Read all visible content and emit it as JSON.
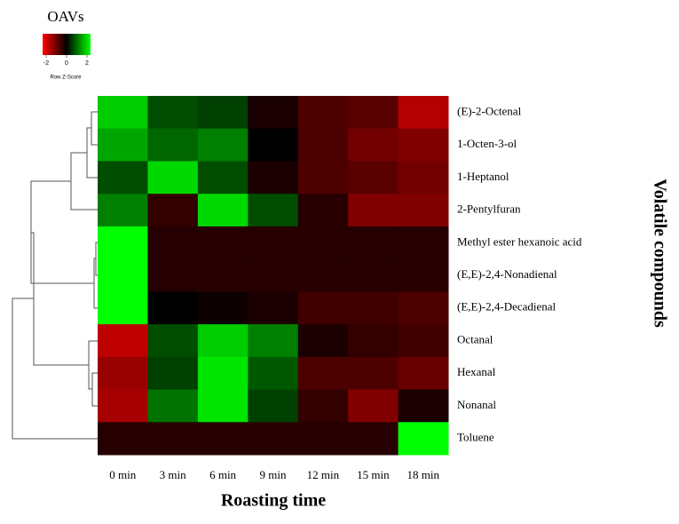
{
  "chart_data": {
    "type": "heatmap",
    "xlabel": "Roasting time",
    "ylabel": "Volatile compounds",
    "x": [
      "0 min",
      "3 min",
      "6 min",
      "9 min",
      "12 min",
      "15 min",
      "18 min"
    ],
    "y": [
      "(E)-2-Octenal",
      "1-Octen-3-ol",
      "1-Heptanol",
      "2-Pentylfuran",
      "Methyl ester hexanoic acid",
      "(E,E)-2,4-Nonadienal",
      "(E,E)-2,4-Decadienal",
      "Octanal",
      "Hexanal",
      "Nonanal",
      "Toluene"
    ],
    "values": [
      [
        1.6,
        0.6,
        0.5,
        -0.2,
        -0.6,
        -0.7,
        -1.4
      ],
      [
        1.3,
        0.8,
        1.0,
        0.0,
        -0.6,
        -0.9,
        -1.0
      ],
      [
        0.6,
        1.7,
        0.6,
        -0.2,
        -0.6,
        -0.7,
        -0.9
      ],
      [
        1.0,
        -0.4,
        1.7,
        0.6,
        -0.3,
        -1.0,
        -1.0
      ],
      [
        2.0,
        -0.3,
        -0.3,
        -0.3,
        -0.3,
        -0.3,
        -0.3
      ],
      [
        2.0,
        -0.3,
        -0.3,
        -0.3,
        -0.3,
        -0.3,
        -0.3
      ],
      [
        2.0,
        0.0,
        -0.1,
        -0.2,
        -0.5,
        -0.5,
        -0.6
      ],
      [
        -1.5,
        0.6,
        1.6,
        1.0,
        -0.2,
        -0.4,
        -0.5
      ],
      [
        -1.2,
        0.5,
        1.8,
        0.7,
        -0.6,
        -0.6,
        -0.8
      ],
      [
        -1.3,
        0.9,
        1.8,
        0.5,
        -0.4,
        -1.0,
        -0.2
      ],
      [
        -0.3,
        -0.3,
        -0.3,
        -0.3,
        -0.3,
        -0.3,
        2.0
      ]
    ],
    "colorbar": {
      "title": "OAVs",
      "label": "Row Z-Score",
      "zlim": [
        -2,
        2
      ],
      "zticks": [
        -2,
        0,
        2
      ],
      "colors": [
        "#ff0000",
        "#000000",
        "#00ff00"
      ]
    }
  }
}
